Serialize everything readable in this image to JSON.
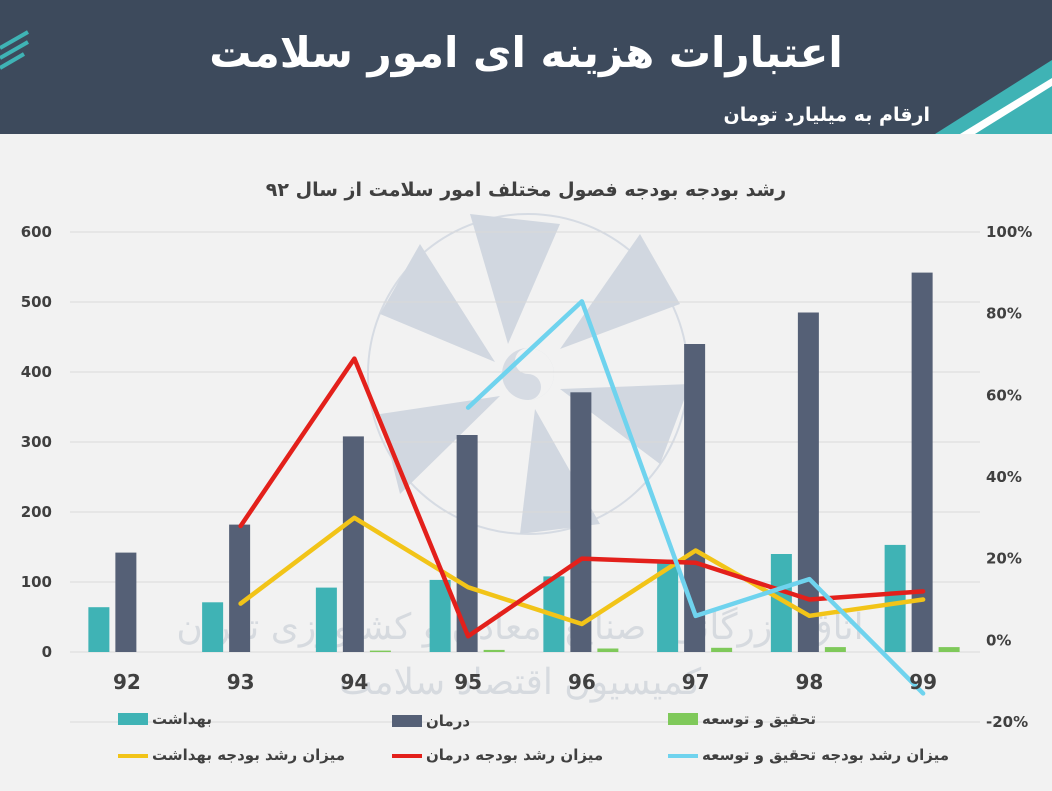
{
  "header": {
    "title": "اعتبارات هزینه ای امور سلامت",
    "subtitle": "ارقام به میلیارد تومان"
  },
  "colors": {
    "header_bg": "#3d4a5c",
    "accent_teal": "#3fb3b5",
    "bar_health": "#3fb3b5",
    "bar_treatment": "#556076",
    "bar_research": "#7fc95a",
    "line_health_growth": "#f2c418",
    "line_treatment_growth": "#e3201b",
    "line_research_growth": "#6fd3ee"
  },
  "watermark": {
    "text_line1": "اتاق بازرگانی، صنایع، معادن و کشاورزی تهران",
    "text_line2": "کمیسیون اقتصاد سلامت",
    "logo_icon": "tehran-chamber-logo-icon"
  },
  "chart_data": {
    "type": "bar",
    "title": "رشد بودجه بودجه فصول مختلف امور سلامت از سال ۹۲",
    "categories": [
      "92",
      "93",
      "94",
      "95",
      "96",
      "97",
      "98",
      "99"
    ],
    "y_left": {
      "ylim": [
        0,
        600
      ],
      "ticks": [
        "0",
        "100",
        "200",
        "300",
        "400",
        "500",
        "600"
      ]
    },
    "y_right": {
      "ylim": [
        -20,
        100
      ],
      "ticks": [
        "-20%",
        "0%",
        "20%",
        "40%",
        "60%",
        "80%",
        "100%"
      ]
    },
    "grid": true,
    "legend_position": "bottom",
    "series": [
      {
        "name": "بهداشت",
        "type": "bar",
        "axis": "left",
        "color": "#3fb3b5",
        "values": [
          64,
          71,
          92,
          103,
          108,
          132,
          140,
          153
        ]
      },
      {
        "name": "درمان",
        "type": "bar",
        "axis": "left",
        "color": "#556076",
        "values": [
          142,
          182,
          308,
          310,
          371,
          440,
          485,
          542
        ]
      },
      {
        "name": "تحقیق و توسعه",
        "type": "bar",
        "axis": "left",
        "color": "#7fc95a",
        "values": [
          0,
          0,
          2,
          3,
          5,
          6,
          7,
          7
        ]
      },
      {
        "name": "میزان رشد بودجه بهداشت",
        "type": "line",
        "axis": "right",
        "color": "#f2c418",
        "values": [
          null,
          9,
          30,
          13,
          4,
          22,
          6,
          10
        ]
      },
      {
        "name": "میزان رشد بودجه درمان",
        "type": "line",
        "axis": "right",
        "color": "#e3201b",
        "values": [
          null,
          28,
          69,
          1,
          20,
          19,
          10,
          12
        ]
      },
      {
        "name": "میزان رشد بودجه تحقیق و توسعه",
        "type": "line",
        "axis": "right",
        "color": "#6fd3ee",
        "values": [
          null,
          null,
          null,
          57,
          83,
          6,
          15,
          -13
        ]
      }
    ]
  }
}
